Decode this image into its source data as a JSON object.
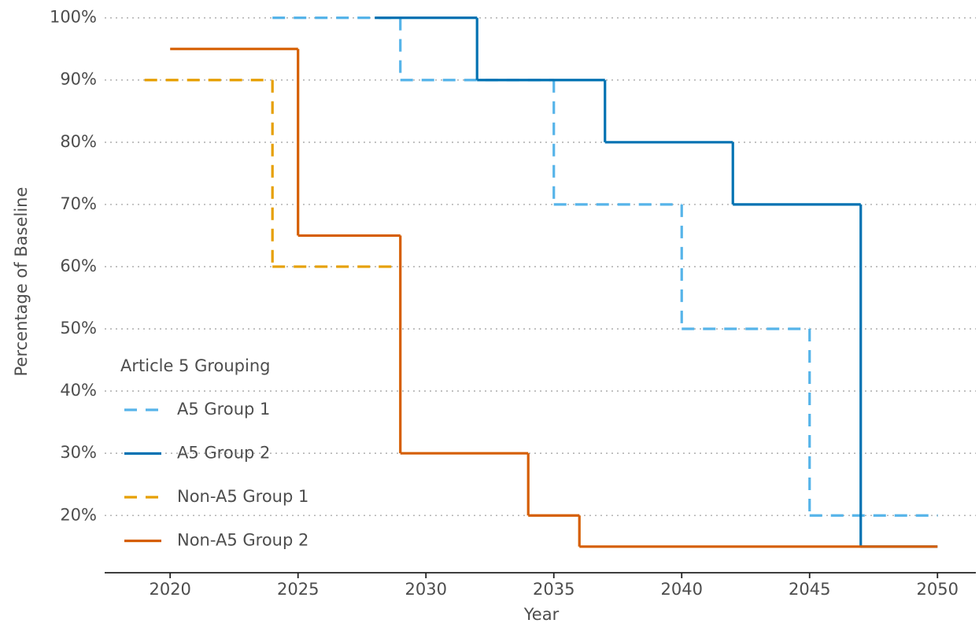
{
  "chart_data": {
    "type": "step",
    "x_label": "Year",
    "y_label": "Percentage of Baseline",
    "xlim": [
      2017.44,
      2051.5
    ],
    "xticks": [
      2020,
      2025,
      2030,
      2035,
      2040,
      2045,
      2050
    ],
    "ylim": [
      10.8,
      101.6
    ],
    "yticks": [
      {
        "value": 20,
        "label": "20%"
      },
      {
        "value": 30,
        "label": "30%"
      },
      {
        "value": 40,
        "label": "40%"
      },
      {
        "value": 50,
        "label": "50%"
      },
      {
        "value": 60,
        "label": "60%"
      },
      {
        "value": 70,
        "label": "70%"
      },
      {
        "value": 80,
        "label": "80%"
      },
      {
        "value": 90,
        "label": "90%"
      },
      {
        "value": 100,
        "label": "100%"
      }
    ],
    "grid": true,
    "legend_title": "Article 5 Grouping",
    "legend_position": "bottom-left",
    "series": [
      {
        "name": "A5 Group 1",
        "color": "#56B4E9",
        "dashed": true,
        "x": [
          2024,
          2029,
          2035,
          2040,
          2045,
          2050
        ],
        "values": [
          100,
          90,
          70,
          50,
          20,
          20
        ]
      },
      {
        "name": "A5 Group 2",
        "color": "#0072B2",
        "dashed": false,
        "x": [
          2028,
          2032,
          2037,
          2042,
          2047,
          2050
        ],
        "values": [
          100,
          90,
          80,
          70,
          15,
          15
        ]
      },
      {
        "name": "Non-A5 Group 1",
        "color": "#E69F00",
        "dashed": true,
        "x": [
          2019,
          2024,
          2029
        ],
        "values": [
          90,
          60,
          60
        ]
      },
      {
        "name": "Non-A5 Group 2",
        "color": "#D55E00",
        "dashed": false,
        "x": [
          2020,
          2025,
          2029,
          2034,
          2036,
          2050
        ],
        "values": [
          95,
          65,
          30,
          20,
          15,
          15
        ]
      }
    ]
  }
}
